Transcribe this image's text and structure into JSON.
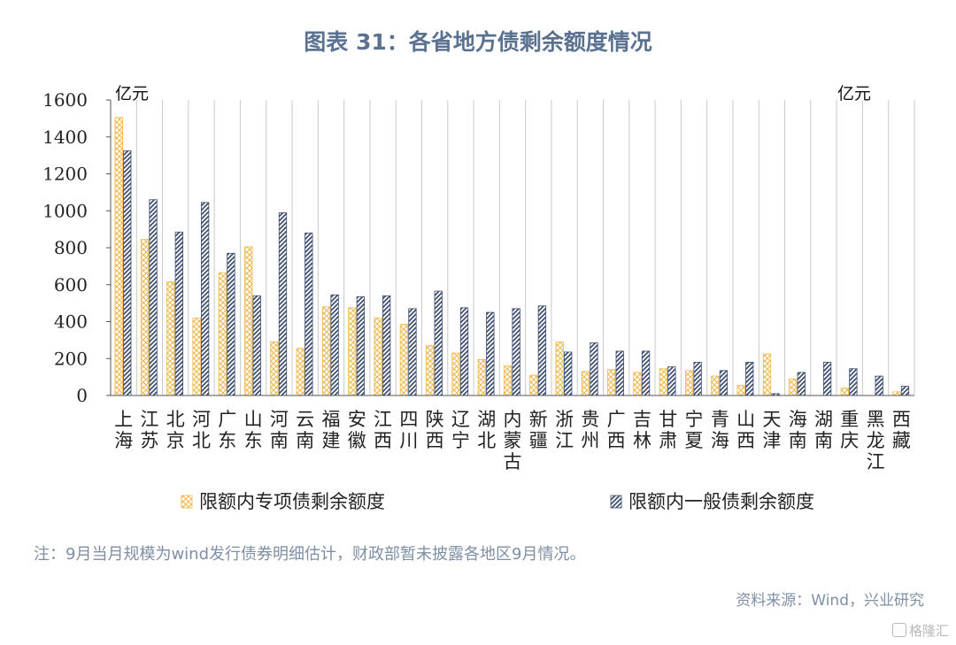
{
  "page": {
    "title": "图表 31：各省地方债剩余额度情况",
    "note": "注：9月当月规模为wind发行债券明细估计，财政部暂未披露各地区9月情况。",
    "source": "资料来源：Wind，兴业研究",
    "watermark": "格隆汇"
  },
  "chart_data": {
    "type": "bar",
    "title": "图表 31：各省地方债剩余额度情况",
    "ylabel_left": "亿元",
    "ylabel_right": "亿元",
    "ylim": [
      0,
      1600
    ],
    "yticks": [
      0,
      200,
      400,
      600,
      800,
      1000,
      1200,
      1400,
      1600
    ],
    "grid": "vertical",
    "legend_position": "bottom",
    "categories": [
      "上海",
      "江苏",
      "北京",
      "河北",
      "广东",
      "山东",
      "河南",
      "云南",
      "福建",
      "安徽",
      "江西",
      "四川",
      "陕西",
      "辽宁",
      "湖北",
      "内蒙古",
      "新疆",
      "浙江",
      "贵州",
      "广西",
      "吉林",
      "甘肃",
      "宁夏",
      "青海",
      "山西",
      "天津",
      "海南",
      "湖南",
      "重庆",
      "黑龙江",
      "西藏"
    ],
    "series": [
      {
        "name": "限额内专项债剩余额度",
        "color": "#f2b84b",
        "values": [
          1505,
          845,
          615,
          420,
          665,
          805,
          290,
          255,
          480,
          475,
          420,
          385,
          270,
          230,
          195,
          160,
          110,
          290,
          130,
          140,
          125,
          145,
          135,
          105,
          55,
          225,
          90,
          0,
          40,
          0,
          20
        ]
      },
      {
        "name": "限额内一般债剩余额度",
        "color": "#3d4e70",
        "values": [
          1325,
          1060,
          885,
          1045,
          770,
          540,
          990,
          880,
          545,
          535,
          540,
          470,
          565,
          475,
          450,
          470,
          485,
          235,
          285,
          240,
          240,
          155,
          180,
          135,
          180,
          10,
          125,
          180,
          145,
          105,
          50
        ]
      }
    ]
  }
}
